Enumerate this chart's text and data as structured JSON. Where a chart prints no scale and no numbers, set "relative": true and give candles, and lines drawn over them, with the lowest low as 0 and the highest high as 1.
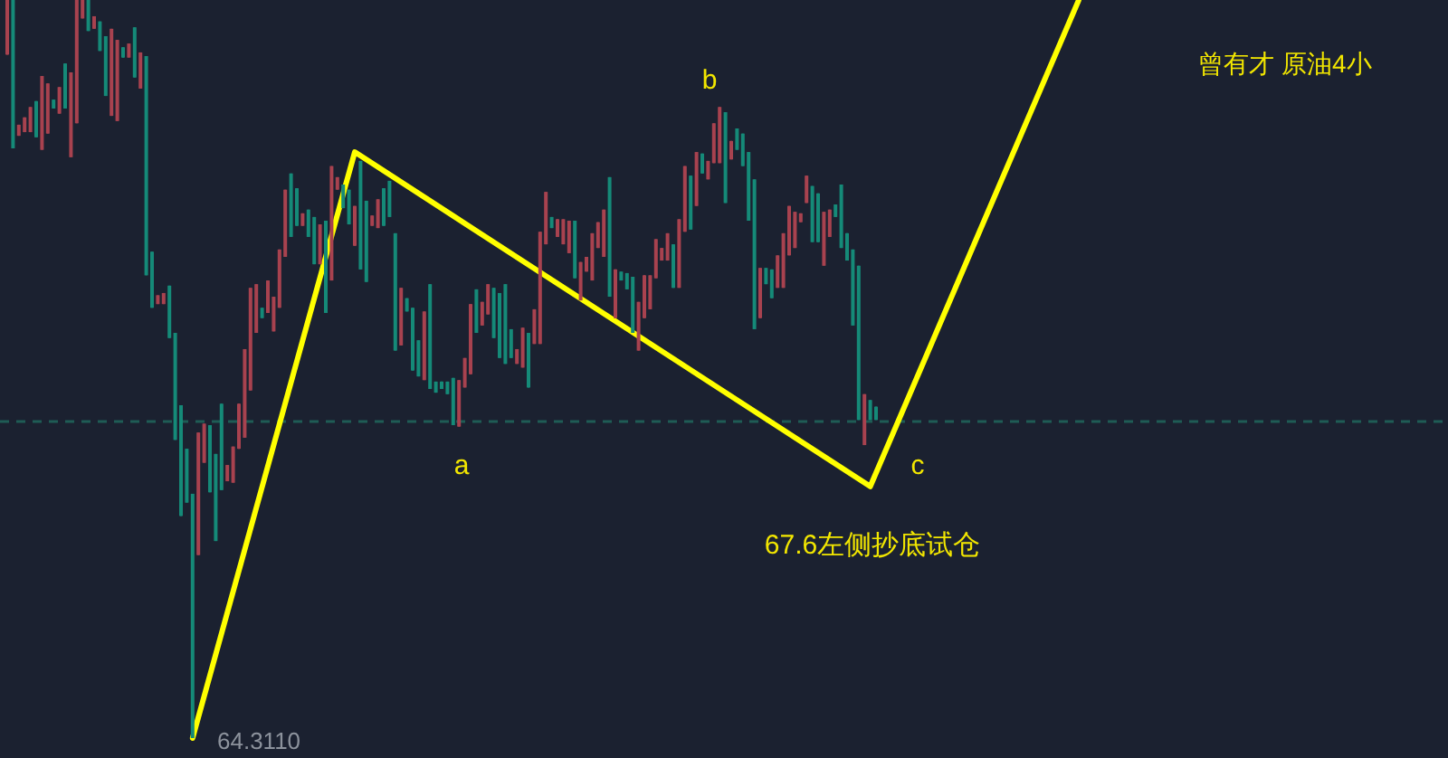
{
  "chart_data": {
    "type": "candlestick",
    "relative": true,
    "title": "曾有才 原油4小",
    "categories": [
      null,
      null,
      null,
      null,
      null,
      null,
      null,
      null,
      null,
      null,
      null,
      null,
      null,
      null,
      null,
      null,
      null,
      null,
      null,
      null,
      null,
      null,
      null,
      null,
      null,
      null,
      null,
      null,
      null,
      null,
      null,
      null,
      null,
      null,
      null,
      null,
      null,
      null,
      null,
      null,
      null,
      null,
      null,
      null,
      null,
      null,
      null,
      null,
      null,
      null,
      null,
      null,
      null,
      null,
      null,
      null,
      null,
      null,
      null,
      null,
      null,
      null,
      null,
      null,
      null,
      null,
      null,
      null,
      null,
      null,
      null,
      null,
      null,
      null,
      null,
      null,
      null,
      null,
      null,
      null,
      null,
      null,
      null,
      null,
      null,
      null,
      null,
      null,
      null,
      null,
      null,
      null,
      null,
      null,
      null,
      null,
      null,
      null,
      null,
      null,
      null,
      null,
      null,
      null,
      null,
      null,
      null,
      null,
      null,
      null,
      null,
      null,
      null,
      null,
      null,
      null,
      null,
      null,
      null,
      null,
      null,
      null,
      null,
      null,
      null,
      null,
      null,
      null,
      null,
      null,
      null,
      null,
      null,
      null,
      null,
      null,
      null,
      null,
      null,
      null,
      null,
      null,
      null,
      null,
      null,
      null,
      null,
      null,
      null,
      null,
      null,
      null,
      null,
      null,
      null,
      null,
      null,
      null,
      null,
      null,
      null,
      null,
      null,
      null,
      null,
      null,
      null,
      null,
      null,
      null,
      null,
      null,
      null,
      null,
      null,
      null,
      null,
      null,
      null,
      null,
      null,
      null,
      null,
      null,
      null,
      null
    ],
    "ohlc": [
      [
        1.0,
        1.0,
        0.926,
        0.926
      ],
      [
        0.799,
        1.0,
        0.799,
        1.0
      ],
      [
        0.831,
        0.831,
        0.816,
        0.816
      ],
      [
        0.841,
        0.841,
        0.821,
        0.821
      ],
      [
        0.855,
        0.855,
        0.821,
        0.821
      ],
      [
        0.814,
        0.863,
        0.814,
        0.863
      ],
      [
        0.897,
        0.897,
        0.797,
        0.797
      ],
      [
        0.887,
        0.887,
        0.819,
        0.819
      ],
      [
        0.853,
        0.865,
        0.853,
        0.865
      ],
      [
        0.882,
        0.882,
        0.846,
        0.846
      ],
      [
        0.853,
        0.914,
        0.853,
        0.914
      ],
      [
        0.902,
        0.902,
        0.787,
        0.787
      ],
      [
        1.0,
        1.0,
        0.833,
        0.833
      ],
      [
        1.0,
        1.0,
        0.975,
        0.975
      ],
      [
        0.958,
        1.0,
        0.958,
        1.0
      ],
      [
        0.978,
        0.978,
        0.961,
        0.961
      ],
      [
        0.931,
        0.971,
        0.931,
        0.971
      ],
      [
        0.87,
        0.951,
        0.87,
        0.951
      ],
      [
        0.961,
        0.961,
        0.843,
        0.843
      ],
      [
        0.946,
        0.946,
        0.836,
        0.836
      ],
      [
        0.922,
        0.936,
        0.922,
        0.936
      ],
      [
        0.941,
        0.941,
        0.922,
        0.922
      ],
      [
        0.895,
        0.963,
        0.895,
        0.963
      ],
      [
        0.929,
        0.929,
        0.88,
        0.88
      ],
      [
        0.627,
        0.924,
        0.627,
        0.924
      ],
      [
        0.583,
        0.659,
        0.583,
        0.659
      ],
      [
        0.6,
        0.6,
        0.588,
        0.588
      ],
      [
        0.603,
        0.603,
        0.588,
        0.588
      ],
      [
        0.542,
        0.613,
        0.542,
        0.613
      ],
      [
        0.404,
        0.549,
        0.404,
        0.549
      ],
      [
        0.301,
        0.451,
        0.301,
        0.451
      ],
      [
        0.319,
        0.392,
        0.319,
        0.392
      ],
      [
        0,
        0.331,
        0,
        0.331
      ],
      [
        0.414,
        0.414,
        0.248,
        0.248
      ],
      [
        0.426,
        0.426,
        0.373,
        0.373
      ],
      [
        0.333,
        0.424,
        0.333,
        0.424
      ],
      [
        0.267,
        0.385,
        0.267,
        0.385
      ],
      [
        0.336,
        0.453,
        0.336,
        0.453
      ],
      [
        0.37,
        0.37,
        0.348,
        0.348
      ],
      [
        0.395,
        0.395,
        0.346,
        0.346
      ],
      [
        0.453,
        0.453,
        0.392,
        0.392
      ],
      [
        0.527,
        0.527,
        0.407,
        0.407
      ],
      [
        0.61,
        0.61,
        0.471,
        0.471
      ],
      [
        0.615,
        0.615,
        0.549,
        0.549
      ],
      [
        0.569,
        0.583,
        0.569,
        0.583
      ],
      [
        0.62,
        0.62,
        0.576,
        0.576
      ],
      [
        0.598,
        0.598,
        0.551,
        0.551
      ],
      [
        0.662,
        0.662,
        0.583,
        0.583
      ],
      [
        0.743,
        0.743,
        0.652,
        0.652
      ],
      [
        0.679,
        0.765,
        0.679,
        0.765
      ],
      [
        0.694,
        0.745,
        0.694,
        0.745
      ],
      [
        0.711,
        0.711,
        0.694,
        0.694
      ],
      [
        0.679,
        0.716,
        0.679,
        0.716
      ],
      [
        0.642,
        0.706,
        0.642,
        0.706
      ],
      [
        0.696,
        0.696,
        0.642,
        0.642
      ],
      [
        0.576,
        0.701,
        0.576,
        0.701
      ],
      [
        0.775,
        0.775,
        0.62,
        0.62
      ],
      [
        0.76,
        0.76,
        0.743,
        0.743
      ],
      [
        0.718,
        0.75,
        0.718,
        0.75
      ],
      [
        0.696,
        0.743,
        0.696,
        0.743
      ],
      [
        0.721,
        0.721,
        0.667,
        0.667
      ],
      [
        0.635,
        0.782,
        0.635,
        0.782
      ],
      [
        0.618,
        0.728,
        0.618,
        0.728
      ],
      [
        0.708,
        0.708,
        0.694,
        0.694
      ],
      [
        0.73,
        0.73,
        0.691,
        0.691
      ],
      [
        0.694,
        0.745,
        0.694,
        0.745
      ],
      [
        0.706,
        0.755,
        0.706,
        0.755
      ],
      [
        0.525,
        0.684,
        0.525,
        0.684
      ],
      [
        0.61,
        0.61,
        0.532,
        0.532
      ],
      [
        0.578,
        0.596,
        0.578,
        0.596
      ],
      [
        0.498,
        0.583,
        0.498,
        0.583
      ],
      [
        0.49,
        0.539,
        0.49,
        0.539
      ],
      [
        0.578,
        0.578,
        0.485,
        0.485
      ],
      [
        0.473,
        0.615,
        0.473,
        0.615
      ],
      [
        0.468,
        0.483,
        0.468,
        0.483
      ],
      [
        0.473,
        0.483,
        0.473,
        0.483
      ],
      [
        0.466,
        0.483,
        0.466,
        0.483
      ],
      [
        0.424,
        0.488,
        0.424,
        0.488
      ],
      [
        0.485,
        0.485,
        0.422,
        0.422
      ],
      [
        0.515,
        0.515,
        0.475,
        0.475
      ],
      [
        0.588,
        0.588,
        0.493,
        0.493
      ],
      [
        0.549,
        0.608,
        0.549,
        0.608
      ],
      [
        0.591,
        0.591,
        0.559,
        0.559
      ],
      [
        0.615,
        0.615,
        0.574,
        0.574
      ],
      [
        0.542,
        0.61,
        0.542,
        0.61
      ],
      [
        0.515,
        0.603,
        0.515,
        0.603
      ],
      [
        0.507,
        0.615,
        0.507,
        0.615
      ],
      [
        0.515,
        0.554,
        0.515,
        0.554
      ],
      [
        0.527,
        0.527,
        0.507,
        0.507
      ],
      [
        0.556,
        0.556,
        0.502,
        0.502
      ],
      [
        0.475,
        0.549,
        0.475,
        0.549
      ],
      [
        0.581,
        0.581,
        0.534,
        0.534
      ],
      [
        0.686,
        0.686,
        0.534,
        0.534
      ],
      [
        0.74,
        0.74,
        0.669,
        0.669
      ],
      [
        0.691,
        0.706,
        0.691,
        0.706
      ],
      [
        0.703,
        0.703,
        0.679,
        0.679
      ],
      [
        0.703,
        0.703,
        0.669,
        0.669
      ],
      [
        0.701,
        0.701,
        0.657,
        0.657
      ],
      [
        0.623,
        0.701,
        0.623,
        0.701
      ],
      [
        0.645,
        0.645,
        0.593,
        0.593
      ],
      [
        0.652,
        0.652,
        0.632,
        0.632
      ],
      [
        0.684,
        0.684,
        0.62,
        0.62
      ],
      [
        0.699,
        0.699,
        0.664,
        0.664
      ],
      [
        0.716,
        0.716,
        0.652,
        0.652
      ],
      [
        0.598,
        0.76,
        0.598,
        0.76
      ],
      [
        0.635,
        0.635,
        0.569,
        0.569
      ],
      [
        0.62,
        0.632,
        0.62,
        0.632
      ],
      [
        0.608,
        0.63,
        0.608,
        0.63
      ],
      [
        0.549,
        0.625,
        0.549,
        0.625
      ],
      [
        0.591,
        0.591,
        0.525,
        0.525
      ],
      [
        0.627,
        0.627,
        0.569,
        0.569
      ],
      [
        0.627,
        0.627,
        0.581,
        0.581
      ],
      [
        0.676,
        0.676,
        0.623,
        0.623
      ],
      [
        0.664,
        0.664,
        0.647,
        0.647
      ],
      [
        0.684,
        0.684,
        0.647,
        0.647
      ],
      [
        0.61,
        0.669,
        0.61,
        0.669
      ],
      [
        0.703,
        0.703,
        0.61,
        0.61
      ],
      [
        0.775,
        0.775,
        0.686,
        0.686
      ],
      [
        0.689,
        0.762,
        0.689,
        0.762
      ],
      [
        0.794,
        0.794,
        0.721,
        0.721
      ],
      [
        0.765,
        0.792,
        0.765,
        0.792
      ],
      [
        0.782,
        0.782,
        0.757,
        0.757
      ],
      [
        0.833,
        0.833,
        0.779,
        0.779
      ],
      [
        0.855,
        0.855,
        0.779,
        0.779
      ],
      [
        0.725,
        0.848,
        0.725,
        0.848
      ],
      [
        0.809,
        0.809,
        0.784,
        0.784
      ],
      [
        0.797,
        0.826,
        0.797,
        0.826
      ],
      [
        0.775,
        0.819,
        0.775,
        0.819
      ],
      [
        0.701,
        0.794,
        0.701,
        0.794
      ],
      [
        0.554,
        0.757,
        0.554,
        0.757
      ],
      [
        0.637,
        0.637,
        0.569,
        0.569
      ],
      [
        0.615,
        0.637,
        0.615,
        0.637
      ],
      [
        0.596,
        0.635,
        0.596,
        0.635
      ],
      [
        0.654,
        0.654,
        0.61,
        0.61
      ],
      [
        0.684,
        0.684,
        0.61,
        0.61
      ],
      [
        0.721,
        0.721,
        0.654,
        0.654
      ],
      [
        0.713,
        0.713,
        0.664,
        0.664
      ],
      [
        0.711,
        0.711,
        0.699,
        0.699
      ],
      [
        0.762,
        0.762,
        0.725,
        0.725
      ],
      [
        0.672,
        0.748,
        0.672,
        0.748
      ],
      [
        0.672,
        0.738,
        0.672,
        0.738
      ],
      [
        0.713,
        0.713,
        0.64,
        0.64
      ],
      [
        0.716,
        0.716,
        0.679,
        0.679
      ],
      [
        0.706,
        0.723,
        0.706,
        0.723
      ],
      [
        0.664,
        0.75,
        0.664,
        0.75
      ],
      [
        0.647,
        0.684,
        0.647,
        0.684
      ],
      [
        0.559,
        0.662,
        0.559,
        0.662
      ],
      [
        0.431,
        0.64,
        0.431,
        0.64
      ],
      [
        0.466,
        0.466,
        0.397,
        0.397
      ],
      [
        0.431,
        0.458,
        0.431,
        0.458
      ],
      [
        0.431,
        0.449,
        0.431,
        0.449
      ],
      null,
      null,
      null,
      null,
      null,
      null,
      null,
      null,
      null,
      null,
      null,
      null,
      null,
      null,
      null,
      null,
      null,
      null,
      null,
      null,
      null,
      null,
      null,
      null,
      null,
      null,
      null,
      null,
      null,
      null,
      null,
      null,
      null,
      null,
      null
    ],
    "colors": [
      "#a8424f",
      "#158a78",
      "#a8424f",
      "#a8424f",
      "#a8424f",
      "#158a78",
      "#a8424f",
      "#a8424f",
      "#158a78",
      "#a8424f",
      "#158a78",
      "#a8424f",
      "#a8424f",
      "#a8424f",
      "#158a78",
      "#a8424f",
      "#158a78",
      "#158a78",
      "#a8424f",
      "#a8424f",
      "#158a78",
      "#a8424f",
      "#158a78",
      "#a8424f",
      "#158a78",
      "#158a78",
      "#a8424f",
      "#a8424f",
      "#158a78",
      "#158a78",
      "#158a78",
      "#158a78",
      "#158a78",
      "#a8424f",
      "#a8424f",
      "#158a78",
      "#158a78",
      "#158a78",
      "#a8424f",
      "#a8424f",
      "#a8424f",
      "#a8424f",
      "#a8424f",
      "#a8424f",
      "#158a78",
      "#a8424f",
      "#a8424f",
      "#a8424f",
      "#a8424f",
      "#158a78",
      "#158a78",
      "#a8424f",
      "#158a78",
      "#158a78",
      "#a8424f",
      "#158a78",
      "#a8424f",
      "#a8424f",
      "#158a78",
      "#158a78",
      "#a8424f",
      "#158a78",
      "#158a78",
      "#a8424f",
      "#a8424f",
      "#158a78",
      "#158a78",
      "#158a78",
      "#a8424f",
      "#158a78",
      "#158a78",
      "#158a78",
      "#a8424f",
      "#158a78",
      "#158a78",
      "#158a78",
      "#158a78",
      "#158a78",
      "#a8424f",
      "#a8424f",
      "#a8424f",
      "#158a78",
      "#a8424f",
      "#a8424f",
      "#158a78",
      "#158a78",
      "#158a78",
      "#158a78",
      "#a8424f",
      "#a8424f",
      "#158a78",
      "#a8424f",
      "#a8424f",
      "#a8424f",
      "#158a78",
      "#a8424f",
      "#a8424f",
      "#a8424f",
      "#158a78",
      "#a8424f",
      "#a8424f",
      "#a8424f",
      "#a8424f",
      "#a8424f",
      "#158a78",
      "#a8424f",
      "#158a78",
      "#158a78",
      "#158a78",
      "#a8424f",
      "#a8424f",
      "#a8424f",
      "#a8424f",
      "#a8424f",
      "#a8424f",
      "#158a78",
      "#a8424f",
      "#a8424f",
      "#158a78",
      "#a8424f",
      "#158a78",
      "#a8424f",
      "#a8424f",
      "#a8424f",
      "#158a78",
      "#a8424f",
      "#158a78",
      "#158a78",
      "#158a78",
      "#158a78",
      "#a8424f",
      "#158a78",
      "#158a78",
      "#a8424f",
      "#a8424f",
      "#a8424f",
      "#a8424f",
      "#a8424f",
      "#a8424f",
      "#158a78",
      "#158a78",
      "#a8424f",
      "#a8424f",
      "#158a78",
      "#158a78",
      "#158a78",
      "#158a78",
      "#158a78",
      "#a8424f",
      "#158a78",
      "#158a78",
      null,
      null,
      null,
      null,
      null,
      null,
      null,
      null,
      null,
      null,
      null,
      null,
      null,
      null,
      null,
      null,
      null,
      null,
      null,
      null,
      null,
      null,
      null,
      null,
      null,
      null,
      null,
      null,
      null,
      null,
      null,
      null,
      null,
      null,
      null
    ],
    "series": [
      {
        "type": "line",
        "color": "#ffff00",
        "values": [
          null,
          null,
          null,
          null,
          null,
          null,
          null,
          null,
          null,
          null,
          null,
          null,
          null,
          null,
          null,
          null,
          null,
          null,
          null,
          null,
          null,
          null,
          null,
          null,
          null,
          null,
          null,
          null,
          null,
          null,
          null,
          null,
          0,
          null,
          null,
          null,
          null,
          null,
          null,
          null,
          null,
          null,
          null,
          null,
          null,
          null,
          null,
          null,
          null,
          null,
          null,
          null,
          null,
          null,
          null,
          null,
          null,
          null,
          null,
          null,
          0.794,
          null,
          null,
          null,
          null,
          null,
          null,
          null,
          null,
          null,
          null,
          null,
          null,
          null,
          null,
          null,
          null,
          null,
          null,
          null,
          null,
          null,
          null,
          null,
          null,
          null,
          null,
          null,
          null,
          null,
          null,
          null,
          null,
          null,
          null,
          null,
          null,
          null,
          null,
          null,
          null,
          null,
          null,
          null,
          null,
          null,
          null,
          null,
          null,
          null,
          null,
          null,
          null,
          null,
          null,
          null,
          null,
          null,
          null,
          null,
          null,
          null,
          null,
          null,
          null,
          null,
          null,
          null,
          null,
          null,
          null,
          null,
          null,
          null,
          null,
          null,
          null,
          null,
          null,
          null,
          null,
          null,
          null,
          null,
          null,
          null,
          null,
          null,
          null,
          0.341,
          null,
          null,
          null,
          null,
          null,
          null,
          null,
          null,
          null,
          null,
          null,
          null,
          null,
          null,
          null,
          null,
          null,
          null,
          null,
          null,
          null,
          null,
          null,
          null,
          null,
          null,
          null,
          null,
          null,
          null,
          null,
          null,
          null,
          null,
          null,
          1
        ]
      }
    ],
    "ref_lines": [
      {
        "axis": "y",
        "value": 0.429,
        "color": "#1f5c55",
        "line_style": "dashed"
      }
    ],
    "annotations": [
      "b",
      "a",
      "c",
      "67.6左侧抄底试仓",
      "64.3110"
    ]
  }
}
